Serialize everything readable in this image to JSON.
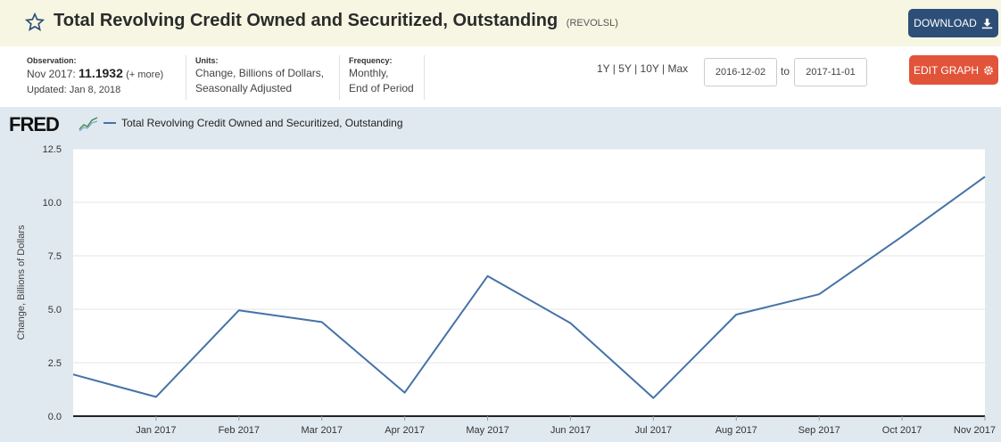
{
  "header": {
    "title": "Total Revolving Credit Owned and Securitized, Outstanding",
    "series_id": "(REVOLSL)",
    "download_label": "DOWNLOAD"
  },
  "meta": {
    "observation_label": "Observation:",
    "observation_date": "Nov 2017:",
    "observation_value": "11.1932",
    "observation_more": "(+ more)",
    "updated": "Updated: Jan 8, 2018",
    "units_label": "Units:",
    "units_line1": "Change, Billions of Dollars,",
    "units_line2": "Seasonally Adjusted",
    "frequency_label": "Frequency:",
    "frequency_line1": "Monthly,",
    "frequency_line2": "End of Period"
  },
  "range": {
    "options": [
      "1Y",
      "5Y",
      "10Y",
      "Max"
    ],
    "start_date": "2016-12-02",
    "to_label": "to",
    "end_date": "2017-11-01"
  },
  "edit_label": "EDIT GRAPH",
  "fred": {
    "logo": "FRED"
  },
  "colors": {
    "line": "#4572a7",
    "download_button": "#2d4e77",
    "edit_button": "#e2543a",
    "panel": "#e1e9f0"
  },
  "chart_data": {
    "type": "line",
    "title": "",
    "xlabel": "",
    "ylabel": "Change, Billions of Dollars",
    "ylim": [
      0,
      12.5
    ],
    "yticks": [
      "0.0",
      "2.5",
      "5.0",
      "7.5",
      "10.0",
      "12.5"
    ],
    "x": [
      "2016-12",
      "2017-01",
      "2017-02",
      "2017-03",
      "2017-04",
      "2017-05",
      "2017-06",
      "2017-07",
      "2017-08",
      "2017-09",
      "2017-10",
      "2017-11"
    ],
    "xtick_labels": [
      "Jan 2017",
      "Feb 2017",
      "Mar 2017",
      "Apr 2017",
      "May 2017",
      "Jun 2017",
      "Jul 2017",
      "Aug 2017",
      "Sep 2017",
      "Oct 2017",
      "Nov 2017"
    ],
    "grid": true,
    "legend_position": "top-left",
    "series": [
      {
        "name": "Total Revolving Credit Owned and Securitized, Outstanding",
        "values": [
          1.95,
          0.9,
          4.95,
          4.4,
          1.1,
          6.55,
          4.35,
          0.85,
          4.75,
          5.7,
          8.4,
          11.1932
        ]
      }
    ]
  }
}
